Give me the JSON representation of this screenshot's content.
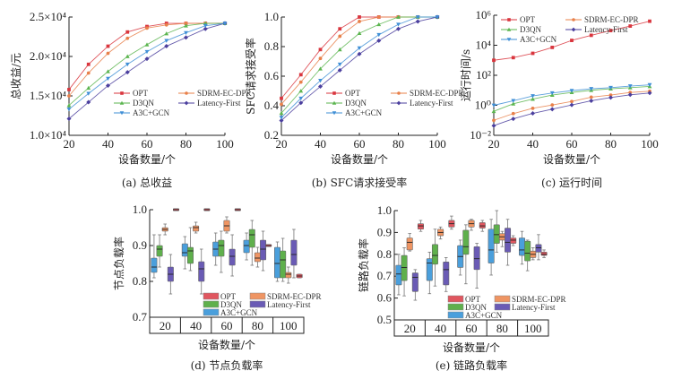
{
  "series_names": [
    "OPT",
    "SDRM-EC-DPR",
    "D3QN",
    "Latency-First",
    "A3C+GCN"
  ],
  "colors": {
    "OPT": "#d9363e",
    "SDRM-EC-DPR": "#e8804a",
    "D3QN": "#5bb54f",
    "Latency-First": "#4b3f9e",
    "A3C+GCN": "#3f8fd6"
  },
  "box_colors": {
    "OPT": "#e0565f",
    "SDRM-EC-DPR": "#ef9563",
    "D3QN": "#5fb04c",
    "Latency-First": "#6a5bb5",
    "A3C+GCN": "#4a9fdc"
  },
  "chart_data": [
    {
      "id": "a",
      "type": "line",
      "title": "(a) 总收益",
      "xlabel": "设备数量/个",
      "ylabel": "总收益/元",
      "x": [
        20,
        30,
        40,
        50,
        60,
        70,
        80,
        90,
        100
      ],
      "xlim": [
        20,
        100
      ],
      "xticks": [
        20,
        40,
        60,
        80,
        100
      ],
      "ylim": [
        1.0,
        2.5
      ],
      "yticks": [
        1.0,
        1.5,
        2.0,
        2.5
      ],
      "ytick_labels": [
        "1.0×10⁴",
        "1.5×10⁴",
        "2.0×10⁴",
        "2.5×10⁴"
      ],
      "yscale": "linear",
      "y_unit": "×10^4",
      "legend": "bottom-right",
      "series": [
        {
          "name": "OPT",
          "marker": "square",
          "values": [
            1.58,
            1.9,
            2.13,
            2.31,
            2.38,
            2.42,
            2.42,
            2.42,
            2.42
          ]
        },
        {
          "name": "SDRM-EC-DPR",
          "marker": "circle",
          "values": [
            1.5,
            1.79,
            2.04,
            2.23,
            2.36,
            2.4,
            2.42,
            2.42,
            2.42
          ]
        },
        {
          "name": "D3QN",
          "marker": "triangle-up",
          "values": [
            1.38,
            1.6,
            1.81,
            2.0,
            2.15,
            2.29,
            2.39,
            2.42,
            2.42
          ]
        },
        {
          "name": "Latency-First",
          "marker": "diamond",
          "values": [
            1.21,
            1.42,
            1.63,
            1.8,
            1.97,
            2.13,
            2.24,
            2.35,
            2.42
          ]
        },
        {
          "name": "A3C+GCN",
          "marker": "triangle-down",
          "values": [
            1.33,
            1.53,
            1.72,
            1.9,
            2.06,
            2.2,
            2.3,
            2.39,
            2.42
          ]
        }
      ]
    },
    {
      "id": "b",
      "type": "line",
      "title": "(b) SFC请求接受率",
      "xlabel": "设备数量/个",
      "ylabel": "SFC请求接受率",
      "x": [
        20,
        30,
        40,
        50,
        60,
        70,
        80,
        90,
        100
      ],
      "xlim": [
        20,
        100
      ],
      "xticks": [
        20,
        40,
        60,
        80,
        100
      ],
      "ylim": [
        0.2,
        1.0
      ],
      "yticks": [
        0.2,
        0.4,
        0.6,
        0.8,
        1.0
      ],
      "ytick_labels": [
        "0.2",
        "0.4",
        "0.6",
        "0.8",
        "1.0"
      ],
      "yscale": "linear",
      "legend": "bottom-right",
      "series": [
        {
          "name": "OPT",
          "marker": "square",
          "values": [
            0.45,
            0.61,
            0.78,
            0.92,
            1.0,
            1.0,
            1.0,
            1.0,
            1.0
          ]
        },
        {
          "name": "SDRM-EC-DPR",
          "marker": "circle",
          "values": [
            0.41,
            0.56,
            0.72,
            0.87,
            0.97,
            1.0,
            1.0,
            1.0,
            1.0
          ]
        },
        {
          "name": "D3QN",
          "marker": "triangle-up",
          "values": [
            0.35,
            0.5,
            0.65,
            0.78,
            0.89,
            0.95,
            1.0,
            1.0,
            1.0
          ]
        },
        {
          "name": "Latency-First",
          "marker": "diamond",
          "values": [
            0.3,
            0.42,
            0.53,
            0.64,
            0.75,
            0.84,
            0.92,
            0.97,
            1.0
          ]
        },
        {
          "name": "A3C+GCN",
          "marker": "triangle-down",
          "values": [
            0.32,
            0.45,
            0.57,
            0.68,
            0.79,
            0.88,
            0.95,
            1.0,
            1.0
          ]
        }
      ]
    },
    {
      "id": "c",
      "type": "line",
      "title": "(c) 运行时间",
      "xlabel": "设备数量/个",
      "ylabel": "运行时间/s",
      "x": [
        20,
        30,
        40,
        50,
        60,
        70,
        80,
        90,
        100
      ],
      "xlim": [
        20,
        100
      ],
      "xticks": [
        20,
        40,
        60,
        80,
        100
      ],
      "ylim": [
        0.01,
        1000000
      ],
      "yticks": [
        0.01,
        1,
        100,
        10000,
        1000000
      ],
      "ytick_labels": [
        "10⁻²",
        "10⁰",
        "10²",
        "10⁴",
        "10⁶"
      ],
      "yscale": "log",
      "legend": "top-left",
      "series": [
        {
          "name": "OPT",
          "marker": "square",
          "values": [
            1000,
            1500,
            2900,
            7200,
            21000,
            46000,
            95000,
            190000,
            400000
          ]
        },
        {
          "name": "SDRM-EC-DPR",
          "marker": "circle",
          "values": [
            0.1,
            0.28,
            0.63,
            1.05,
            1.8,
            3.5,
            4.8,
            7.2,
            8.7
          ]
        },
        {
          "name": "D3QN",
          "marker": "triangle-up",
          "values": [
            0.4,
            1.26,
            2.6,
            4.8,
            7.2,
            10,
            12.6,
            15,
            18
          ]
        },
        {
          "name": "Latency-First",
          "marker": "diamond",
          "values": [
            0.044,
            0.126,
            0.29,
            0.55,
            1.05,
            2.0,
            3.3,
            5.0,
            6.6
          ]
        },
        {
          "name": "A3C+GCN",
          "marker": "triangle-down",
          "values": [
            1.0,
            2.0,
            4.2,
            6.6,
            9.5,
            12.6,
            15,
            19,
            23
          ]
        }
      ]
    },
    {
      "id": "d",
      "type": "box",
      "title": "(d) 节点负载率",
      "xlabel": "设备数量/个",
      "ylabel": "节点负载率",
      "categories": [
        "20",
        "40",
        "60",
        "80",
        "100"
      ],
      "ylim": [
        0.7,
        1.0
      ],
      "yticks": [
        0.7,
        0.8,
        0.9,
        1.0
      ],
      "ytick_labels": [
        "0.7",
        "0.8",
        "0.9",
        "1.0"
      ],
      "legend": "bottom-right",
      "box_order": [
        "A3C+GCN",
        "D3QN",
        "SDRM-EC-DPR",
        "Latency-First",
        "OPT"
      ],
      "series": [
        {
          "name": "A3C+GCN",
          "boxes": [
            {
              "min": 0.81,
              "q1": 0.825,
              "median": 0.84,
              "q3": 0.865,
              "max": 0.93
            },
            {
              "min": 0.835,
              "q1": 0.87,
              "median": 0.88,
              "q3": 0.905,
              "max": 0.925
            },
            {
              "min": 0.845,
              "q1": 0.87,
              "median": 0.89,
              "q3": 0.91,
              "max": 0.935
            },
            {
              "min": 0.86,
              "q1": 0.88,
              "median": 0.9,
              "q3": 0.915,
              "max": 0.935
            },
            {
              "min": 0.8,
              "q1": 0.81,
              "median": 0.85,
              "q3": 0.895,
              "max": 0.91
            }
          ]
        },
        {
          "name": "D3QN",
          "boxes": [
            {
              "min": 0.84,
              "q1": 0.87,
              "median": 0.89,
              "q3": 0.9,
              "max": 0.93
            },
            {
              "min": 0.83,
              "q1": 0.85,
              "median": 0.885,
              "q3": 0.895,
              "max": 0.95
            },
            {
              "min": 0.825,
              "q1": 0.87,
              "median": 0.9,
              "q3": 0.915,
              "max": 0.94
            },
            {
              "min": 0.845,
              "q1": 0.895,
              "median": 0.93,
              "q3": 0.945,
              "max": 0.97
            },
            {
              "min": 0.8,
              "q1": 0.81,
              "median": 0.86,
              "q3": 0.885,
              "max": 0.92
            }
          ]
        },
        {
          "name": "SDRM-EC-DPR",
          "boxes": [
            {
              "min": 0.93,
              "q1": 0.94,
              "median": 0.945,
              "q3": 0.95,
              "max": 0.96
            },
            {
              "min": 0.935,
              "q1": 0.94,
              "median": 0.95,
              "q3": 0.955,
              "max": 0.965
            },
            {
              "min": 0.935,
              "q1": 0.94,
              "median": 0.955,
              "q3": 0.97,
              "max": 0.98
            },
            {
              "min": 0.84,
              "q1": 0.855,
              "median": 0.865,
              "q3": 0.88,
              "max": 0.895
            },
            {
              "min": 0.795,
              "q1": 0.81,
              "median": 0.82,
              "q3": 0.825,
              "max": 0.84
            }
          ]
        },
        {
          "name": "Latency-First",
          "boxes": [
            {
              "min": 0.765,
              "q1": 0.8,
              "median": 0.82,
              "q3": 0.84,
              "max": 0.875
            },
            {
              "min": 0.765,
              "q1": 0.8,
              "median": 0.835,
              "q3": 0.855,
              "max": 0.89
            },
            {
              "min": 0.815,
              "q1": 0.845,
              "median": 0.87,
              "q3": 0.89,
              "max": 0.93
            },
            {
              "min": 0.83,
              "q1": 0.86,
              "median": 0.89,
              "q3": 0.915,
              "max": 0.94
            },
            {
              "min": 0.81,
              "q1": 0.845,
              "median": 0.875,
              "q3": 0.915,
              "max": 0.945
            }
          ]
        },
        {
          "name": "OPT",
          "boxes": [
            {
              "min": 1.0,
              "q1": 1.0,
              "median": 1.0,
              "q3": 1.0,
              "max": 1.0
            },
            {
              "min": 1.0,
              "q1": 1.0,
              "median": 1.0,
              "q3": 1.0,
              "max": 1.0
            },
            {
              "min": 1.0,
              "q1": 1.0,
              "median": 1.0,
              "q3": 1.0,
              "max": 1.0
            },
            {
              "min": 0.9,
              "q1": 0.9,
              "median": 0.9,
              "q3": 0.9,
              "max": 0.9
            },
            {
              "min": 0.81,
              "q1": 0.81,
              "median": 0.815,
              "q3": 0.82,
              "max": 0.82
            }
          ]
        }
      ]
    },
    {
      "id": "e",
      "type": "box",
      "title": "(e) 链路负载率",
      "xlabel": "设备数量/个",
      "ylabel": "链路负载率",
      "categories": [
        "20",
        "40",
        "60",
        "80",
        "100"
      ],
      "ylim": [
        0.5,
        1.0
      ],
      "yticks": [
        0.5,
        0.6,
        0.7,
        0.8,
        0.9,
        1.0
      ],
      "ytick_labels": [
        "0.5",
        "0.6",
        "0.7",
        "0.8",
        "0.9",
        "1.0"
      ],
      "legend": "bottom-right",
      "box_order": [
        "A3C+GCN",
        "D3QN",
        "SDRM-EC-DPR",
        "Latency-First",
        "OPT"
      ],
      "series": [
        {
          "name": "A3C+GCN",
          "boxes": [
            {
              "min": 0.615,
              "q1": 0.66,
              "median": 0.71,
              "q3": 0.75,
              "max": 0.8
            },
            {
              "min": 0.62,
              "q1": 0.68,
              "median": 0.76,
              "q3": 0.78,
              "max": 0.81
            },
            {
              "min": 0.705,
              "q1": 0.74,
              "median": 0.79,
              "q3": 0.84,
              "max": 0.865
            },
            {
              "min": 0.705,
              "q1": 0.76,
              "median": 0.82,
              "q3": 0.915,
              "max": 0.96
            },
            {
              "min": 0.755,
              "q1": 0.795,
              "median": 0.82,
              "q3": 0.875,
              "max": 0.905
            }
          ]
        },
        {
          "name": "D3QN",
          "boxes": [
            {
              "min": 0.61,
              "q1": 0.68,
              "median": 0.74,
              "q3": 0.795,
              "max": 0.83
            },
            {
              "min": 0.655,
              "q1": 0.755,
              "median": 0.795,
              "q3": 0.845,
              "max": 0.915
            },
            {
              "min": 0.665,
              "q1": 0.8,
              "median": 0.835,
              "q3": 0.91,
              "max": 0.935
            },
            {
              "min": 0.81,
              "q1": 0.85,
              "median": 0.89,
              "q3": 0.935,
              "max": 1.0
            },
            {
              "min": 0.725,
              "q1": 0.77,
              "median": 0.805,
              "q3": 0.86,
              "max": 0.865
            }
          ]
        },
        {
          "name": "SDRM-EC-DPR",
          "boxes": [
            {
              "min": 0.815,
              "q1": 0.82,
              "median": 0.855,
              "q3": 0.875,
              "max": 0.895
            },
            {
              "min": 0.87,
              "q1": 0.885,
              "median": 0.9,
              "q3": 0.915,
              "max": 0.925
            },
            {
              "min": 0.91,
              "q1": 0.925,
              "median": 0.94,
              "q3": 0.955,
              "max": 0.96
            },
            {
              "min": 0.835,
              "q1": 0.865,
              "median": 0.88,
              "q3": 0.895,
              "max": 0.905
            },
            {
              "min": 0.775,
              "q1": 0.785,
              "median": 0.8,
              "q3": 0.815,
              "max": 0.83
            }
          ]
        },
        {
          "name": "Latency-First",
          "boxes": [
            {
              "min": 0.59,
              "q1": 0.63,
              "median": 0.695,
              "q3": 0.715,
              "max": 0.73
            },
            {
              "min": 0.63,
              "q1": 0.66,
              "median": 0.73,
              "q3": 0.765,
              "max": 0.785
            },
            {
              "min": 0.645,
              "q1": 0.73,
              "median": 0.78,
              "q3": 0.835,
              "max": 0.85
            },
            {
              "min": 0.75,
              "q1": 0.81,
              "median": 0.855,
              "q3": 0.92,
              "max": 0.96
            },
            {
              "min": 0.775,
              "q1": 0.81,
              "median": 0.83,
              "q3": 0.845,
              "max": 0.89
            }
          ]
        },
        {
          "name": "OPT",
          "boxes": [
            {
              "min": 0.905,
              "q1": 0.915,
              "median": 0.93,
              "q3": 0.94,
              "max": 0.955
            },
            {
              "min": 0.915,
              "q1": 0.925,
              "median": 0.94,
              "q3": 0.955,
              "max": 0.975
            },
            {
              "min": 0.905,
              "q1": 0.92,
              "median": 0.93,
              "q3": 0.945,
              "max": 0.955
            },
            {
              "min": 0.84,
              "q1": 0.85,
              "median": 0.865,
              "q3": 0.875,
              "max": 0.885
            },
            {
              "min": 0.785,
              "q1": 0.795,
              "median": 0.8,
              "q3": 0.81,
              "max": 0.82
            }
          ]
        }
      ]
    }
  ]
}
